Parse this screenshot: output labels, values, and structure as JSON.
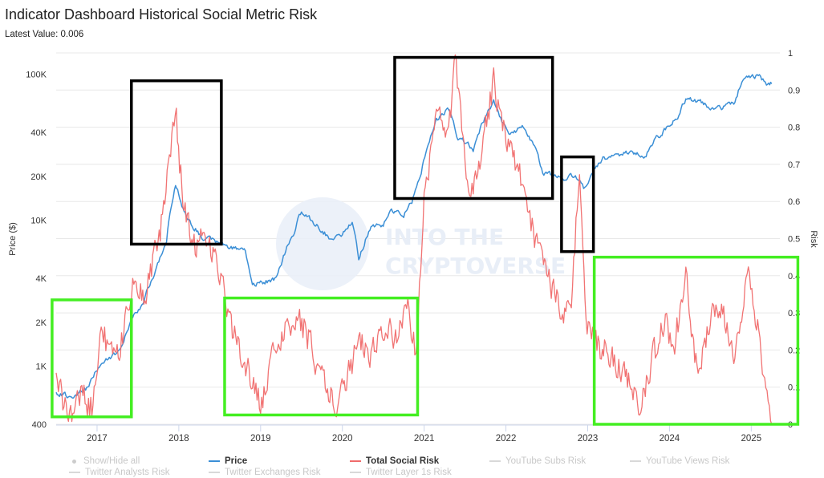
{
  "header": {
    "title": "Indicator Dashboard Historical Social Metric Risk",
    "latest": "Latest Value: 0.006"
  },
  "watermark": {
    "line1": "INTO THE",
    "line2": "CRYPTOVERSE"
  },
  "legend": {
    "show_hide": "Show/Hide all",
    "items": [
      {
        "label": "Price",
        "active": true,
        "color": "#3b8fd6"
      },
      {
        "label": "Total Social Risk",
        "active": true,
        "color": "#f06b6b"
      },
      {
        "label": "YouTube Subs Risk",
        "active": false
      },
      {
        "label": "YouTube Views Risk",
        "active": false
      },
      {
        "label": "Twitter Analysts Risk",
        "active": false
      },
      {
        "label": "Twitter Exchanges Risk",
        "active": false
      },
      {
        "label": "Twitter Layer 1s Risk",
        "active": false
      }
    ]
  },
  "chart_data": {
    "type": "line",
    "title": "Indicator Dashboard Historical Social Metric Risk",
    "subtitle": "Latest Value: 0.006",
    "x_axis": {
      "range": [
        2016.5,
        2025.35
      ],
      "ticks": [
        "2017",
        "2018",
        "2019",
        "2020",
        "2021",
        "2022",
        "2023",
        "2024",
        "2025"
      ]
    },
    "y_left": {
      "label": "Price ($)",
      "scale": "log",
      "range": [
        400,
        140000
      ],
      "ticks": [
        [
          "100K",
          100000
        ],
        [
          "40K",
          40000
        ],
        [
          "20K",
          20000
        ],
        [
          "10K",
          10000
        ],
        [
          "4K",
          4000
        ],
        [
          "2K",
          2000
        ],
        [
          "1K",
          1000
        ],
        [
          "400",
          400
        ]
      ]
    },
    "y_right": {
      "label": "Risk",
      "scale": "linear",
      "range": [
        0,
        1
      ],
      "ticks": [
        "0",
        "0.1",
        "0.2",
        "0.3",
        "0.4",
        "0.5",
        "0.6",
        "0.7",
        "0.8",
        "0.9",
        "1"
      ]
    },
    "grid": "horizontal",
    "series": [
      {
        "name": "Price",
        "axis": "left",
        "color": "#3b8fd6",
        "points": [
          [
            2016.5,
            650
          ],
          [
            2016.7,
            620
          ],
          [
            2016.9,
            720
          ],
          [
            2017.0,
            950
          ],
          [
            2017.15,
            1150
          ],
          [
            2017.3,
            1300
          ],
          [
            2017.45,
            2300
          ],
          [
            2017.55,
            2600
          ],
          [
            2017.7,
            4200
          ],
          [
            2017.85,
            7000
          ],
          [
            2017.96,
            17500
          ],
          [
            2018.05,
            12000
          ],
          [
            2018.15,
            9500
          ],
          [
            2018.3,
            7500
          ],
          [
            2018.45,
            7200
          ],
          [
            2018.6,
            6500
          ],
          [
            2018.8,
            6300
          ],
          [
            2018.9,
            3600
          ],
          [
            2019.0,
            3700
          ],
          [
            2019.2,
            4000
          ],
          [
            2019.4,
            8000
          ],
          [
            2019.5,
            11500
          ],
          [
            2019.7,
            9000
          ],
          [
            2019.85,
            7500
          ],
          [
            2020.0,
            8000
          ],
          [
            2020.12,
            9800
          ],
          [
            2020.2,
            5200
          ],
          [
            2020.35,
            9000
          ],
          [
            2020.5,
            9200
          ],
          [
            2020.6,
            11700
          ],
          [
            2020.75,
            11000
          ],
          [
            2020.85,
            13500
          ],
          [
            2020.95,
            19000
          ],
          [
            2021.05,
            33000
          ],
          [
            2021.15,
            48000
          ],
          [
            2021.3,
            58000
          ],
          [
            2021.4,
            37000
          ],
          [
            2021.55,
            33000
          ],
          [
            2021.6,
            30000
          ],
          [
            2021.7,
            45000
          ],
          [
            2021.85,
            64000
          ],
          [
            2021.95,
            48000
          ],
          [
            2022.05,
            38000
          ],
          [
            2022.2,
            44000
          ],
          [
            2022.35,
            31000
          ],
          [
            2022.45,
            21000
          ],
          [
            2022.6,
            20500
          ],
          [
            2022.75,
            19500
          ],
          [
            2022.85,
            20500
          ],
          [
            2022.95,
            16500
          ],
          [
            2023.05,
            21000
          ],
          [
            2023.2,
            27000
          ],
          [
            2023.4,
            27500
          ],
          [
            2023.55,
            30000
          ],
          [
            2023.7,
            26500
          ],
          [
            2023.8,
            34000
          ],
          [
            2023.95,
            42000
          ],
          [
            2024.1,
            50000
          ],
          [
            2024.2,
            68000
          ],
          [
            2024.35,
            65000
          ],
          [
            2024.5,
            60000
          ],
          [
            2024.65,
            58000
          ],
          [
            2024.8,
            65000
          ],
          [
            2024.9,
            92000
          ],
          [
            2025.0,
            98000
          ],
          [
            2025.1,
            97000
          ],
          [
            2025.2,
            84000
          ],
          [
            2025.25,
            86000
          ]
        ]
      },
      {
        "name": "Total Social Risk",
        "axis": "right",
        "color": "#f06b6b",
        "points": [
          [
            2016.5,
            0.12
          ],
          [
            2016.65,
            0.02
          ],
          [
            2016.8,
            0.08
          ],
          [
            2016.95,
            0.04
          ],
          [
            2017.05,
            0.28
          ],
          [
            2017.15,
            0.18
          ],
          [
            2017.3,
            0.22
          ],
          [
            2017.45,
            0.4
          ],
          [
            2017.6,
            0.35
          ],
          [
            2017.8,
            0.55
          ],
          [
            2017.9,
            0.75
          ],
          [
            2017.97,
            0.82
          ],
          [
            2018.05,
            0.6
          ],
          [
            2018.2,
            0.48
          ],
          [
            2018.35,
            0.5
          ],
          [
            2018.5,
            0.42
          ],
          [
            2018.6,
            0.28
          ],
          [
            2018.75,
            0.2
          ],
          [
            2018.9,
            0.12
          ],
          [
            2019.0,
            0.05
          ],
          [
            2019.15,
            0.18
          ],
          [
            2019.3,
            0.26
          ],
          [
            2019.45,
            0.3
          ],
          [
            2019.6,
            0.22
          ],
          [
            2019.75,
            0.12
          ],
          [
            2019.9,
            0.05
          ],
          [
            2020.05,
            0.12
          ],
          [
            2020.2,
            0.22
          ],
          [
            2020.35,
            0.18
          ],
          [
            2020.5,
            0.26
          ],
          [
            2020.65,
            0.24
          ],
          [
            2020.8,
            0.3
          ],
          [
            2020.9,
            0.2
          ],
          [
            2021.0,
            0.6
          ],
          [
            2021.15,
            0.85
          ],
          [
            2021.3,
            0.78
          ],
          [
            2021.38,
            1.0
          ],
          [
            2021.5,
            0.7
          ],
          [
            2021.6,
            0.62
          ],
          [
            2021.75,
            0.8
          ],
          [
            2021.85,
            0.92
          ],
          [
            2022.0,
            0.78
          ],
          [
            2022.1,
            0.72
          ],
          [
            2022.25,
            0.6
          ],
          [
            2022.35,
            0.5
          ],
          [
            2022.5,
            0.4
          ],
          [
            2022.65,
            0.32
          ],
          [
            2022.8,
            0.3
          ],
          [
            2022.9,
            0.7
          ],
          [
            2022.98,
            0.26
          ],
          [
            2023.1,
            0.22
          ],
          [
            2023.3,
            0.18
          ],
          [
            2023.5,
            0.12
          ],
          [
            2023.65,
            0.05
          ],
          [
            2023.8,
            0.18
          ],
          [
            2023.95,
            0.28
          ],
          [
            2024.05,
            0.2
          ],
          [
            2024.2,
            0.4
          ],
          [
            2024.35,
            0.12
          ],
          [
            2024.5,
            0.28
          ],
          [
            2024.65,
            0.3
          ],
          [
            2024.8,
            0.15
          ],
          [
            2024.95,
            0.43
          ],
          [
            2025.05,
            0.3
          ],
          [
            2025.15,
            0.15
          ],
          [
            2025.25,
            0.0
          ]
        ]
      }
    ],
    "annotations": [
      {
        "shape": "rect",
        "color": "#000000",
        "x": [
          2017.42,
          2018.52
        ],
        "risk": [
          0.485,
          0.925
        ]
      },
      {
        "shape": "rect",
        "color": "#000000",
        "x": [
          2020.64,
          2022.57
        ],
        "risk": [
          0.608,
          0.988
        ]
      },
      {
        "shape": "rect",
        "color": "#000000",
        "x": [
          2022.68,
          2023.07
        ],
        "risk": [
          0.465,
          0.72
        ]
      },
      {
        "shape": "rect",
        "color": "#44ee22",
        "x": [
          2016.45,
          2017.42
        ],
        "risk": [
          0.02,
          0.335
        ]
      },
      {
        "shape": "rect",
        "color": "#44ee22",
        "x": [
          2018.56,
          2020.92
        ],
        "risk": [
          0.025,
          0.34
        ]
      },
      {
        "shape": "rect",
        "color": "#44ee22",
        "x": [
          2023.08,
          2025.57
        ],
        "risk": [
          0.0,
          0.45
        ]
      }
    ]
  }
}
